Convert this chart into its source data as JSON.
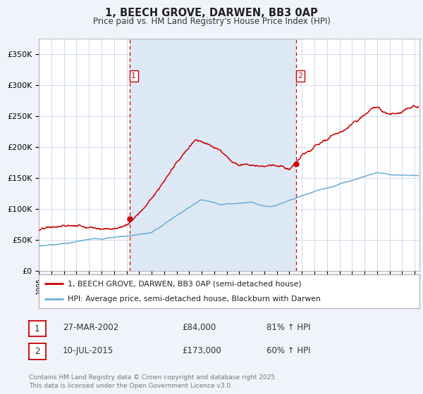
{
  "title": "1, BEECH GROVE, DARWEN, BB3 0AP",
  "subtitle": "Price paid vs. HM Land Registry's House Price Index (HPI)",
  "legend_line1": "1, BEECH GROVE, DARWEN, BB3 0AP (semi-detached house)",
  "legend_line2": "HPI: Average price, semi-detached house, Blackburn with Darwen",
  "footnote": "Contains HM Land Registry data © Crown copyright and database right 2025.\nThis data is licensed under the Open Government Licence v3.0.",
  "table_row1_label": "1",
  "table_row1_date": "27-MAR-2002",
  "table_row1_price": "£84,000",
  "table_row1_hpi": "81% ↑ HPI",
  "table_row2_label": "2",
  "table_row2_date": "10-JUL-2015",
  "table_row2_price": "£173,000",
  "table_row2_hpi": "60% ↑ HPI",
  "sale1_year": 2002.23,
  "sale1_price": 84000,
  "sale2_year": 2015.52,
  "sale2_price": 173000,
  "hpi_color": "#6baed6",
  "price_color": "#cc0000",
  "vline_color": "#cc0000",
  "grid_color": "#c8d4e8",
  "bg_color": "#f0f4fa",
  "plot_bg": "#ffffff",
  "shade_color": "#dde8f5",
  "ylim_max": 375000,
  "ylim_min": 0,
  "dot_color": "#cc0000"
}
